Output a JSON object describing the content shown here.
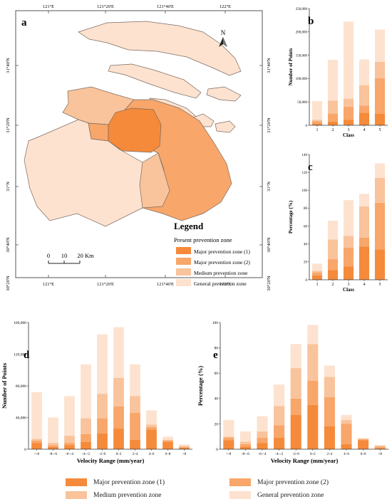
{
  "colors": {
    "major1": "#f58a3a",
    "major2": "#f8a66a",
    "medium": "#f9c39b",
    "general": "#fde2cf",
    "frame": "#555555"
  },
  "map": {
    "label": "a",
    "top_ticks": [
      "121°E",
      "121°20'E",
      "121°40'E",
      "122°E"
    ],
    "bottom_ticks": [
      "121°E",
      "121°20'E",
      "121°40'E",
      "122°E"
    ],
    "left_ticks": [
      "31°40'N",
      "31°20'N",
      "31°N",
      "30°40'N",
      "30°20'N"
    ],
    "right_ticks": [
      "31°40'N",
      "31°20'N",
      "31°N",
      "30°40'N",
      "30°20'N"
    ],
    "north": "N",
    "scale_labels": [
      "0",
      "10",
      "20 Km"
    ],
    "legend_title": "Legend",
    "legend_subtitle": "Present prevention zone",
    "legend_items": [
      {
        "label": "Major prevention zone (1)",
        "color": "#f58a3a"
      },
      {
        "label": "Major prevention zone (2)",
        "color": "#f8a66a"
      },
      {
        "label": "Medium prevention zone",
        "color": "#f9c39b"
      },
      {
        "label": "General prevention zone",
        "color": "#fde2cf"
      }
    ]
  },
  "chart_data": [
    {
      "id": "b",
      "type": "bar",
      "stacked": true,
      "categories": [
        "1",
        "2",
        "3",
        "4",
        "5"
      ],
      "series": [
        {
          "name": "Major prevention zone (1)",
          "values": [
            4000,
            8000,
            12000,
            27000,
            25000
          ]
        },
        {
          "name": "Major prevention zone (2)",
          "values": [
            5000,
            17000,
            28000,
            15000,
            76000
          ]
        },
        {
          "name": "Medium prevention zone",
          "values": [
            3000,
            28000,
            17000,
            44000,
            35000
          ]
        },
        {
          "name": "General prevention zone",
          "values": [
            40000,
            87000,
            165000,
            55000,
            69000
          ]
        }
      ],
      "xlabel": "Class",
      "ylabel": "Number of Points",
      "ylim": [
        0,
        250000
      ],
      "yticks": [
        0,
        50000,
        100000,
        150000,
        200000,
        250000
      ],
      "ytick_labels": [
        "0",
        "50,000",
        "100,000",
        "150,000",
        "200,000",
        "250,000"
      ],
      "grid": false,
      "title": ""
    },
    {
      "id": "c",
      "type": "bar",
      "stacked": true,
      "categories": [
        "1",
        "2",
        "3",
        "4",
        "5"
      ],
      "series": [
        {
          "name": "Major prevention zone (1)",
          "values": [
            5,
            11,
            15,
            37,
            34
          ]
        },
        {
          "name": "Major prevention zone (2)",
          "values": [
            3,
            12,
            21,
            10,
            52
          ]
        },
        {
          "name": "Medium prevention zone",
          "values": [
            2,
            22,
            13,
            35,
            28
          ]
        },
        {
          "name": "General prevention zone",
          "values": [
            8,
            21,
            40,
            14,
            16
          ]
        }
      ],
      "xlabel": "Class",
      "ylabel": "Percentage (%)",
      "ylim": [
        0,
        140
      ],
      "yticks": [
        0,
        20,
        40,
        60,
        80,
        100,
        120,
        140
      ],
      "ytick_labels": [
        "0",
        "20",
        "40",
        "60",
        "80",
        "100",
        "120",
        "140"
      ],
      "grid": false,
      "title": ""
    },
    {
      "id": "d",
      "type": "bar",
      "stacked": true,
      "categories": [
        "<-8",
        "-8~-6",
        "-6~-4",
        "-4~-2",
        "-2~0",
        "0~2",
        "2~4",
        "4~6",
        "6~8",
        ">8"
      ],
      "series": [
        {
          "name": "Major prevention zone (1)",
          "values": [
            8000,
            3000,
            5000,
            9000,
            20000,
            26000,
            12000,
            25000,
            9000,
            2000
          ]
        },
        {
          "name": "Major prevention zone (2)",
          "values": [
            3000,
            2000,
            3000,
            10000,
            19000,
            28000,
            34000,
            3000,
            2000,
            1000
          ]
        },
        {
          "name": "Medium prevention zone",
          "values": [
            2000,
            3000,
            9000,
            20000,
            31000,
            36000,
            21000,
            3000,
            1000,
            1000
          ]
        },
        {
          "name": "General prevention zone",
          "values": [
            59000,
            32000,
            50000,
            68000,
            75000,
            64000,
            40000,
            18000,
            4000,
            2000
          ]
        }
      ],
      "xlabel": "Velocity Range (mm/year)",
      "ylabel": "Number of Points",
      "ylim": [
        0,
        160000
      ],
      "yticks": [
        0,
        40000,
        80000,
        120000,
        160000
      ],
      "ytick_labels": [
        "0",
        "40,000",
        "80,000",
        "120,000",
        "160,000"
      ],
      "grid": false,
      "title": ""
    },
    {
      "id": "e",
      "type": "bar",
      "stacked": true,
      "categories": [
        "<-8",
        "-8~-6",
        "-6~-4",
        "-4~-2",
        "-2~0",
        "0~2",
        "2~4",
        "4~6",
        "6~8",
        ">8"
      ],
      "series": [
        {
          "name": "Major prevention zone (1)",
          "values": [
            7,
            2,
            5,
            9,
            27,
            35,
            18,
            4,
            7,
            1
          ]
        },
        {
          "name": "Major prevention zone (2)",
          "values": [
            2,
            2,
            4,
            10,
            13,
            19,
            23,
            16,
            1,
            1
          ]
        },
        {
          "name": "Medium prevention zone",
          "values": [
            1,
            2,
            5,
            15,
            24,
            29,
            16,
            3,
            0,
            1
          ]
        },
        {
          "name": "General prevention zone",
          "values": [
            13,
            8,
            12,
            17,
            19,
            15,
            9,
            4,
            1,
            0
          ]
        }
      ],
      "xlabel": "Velocity Range (mm/year)",
      "ylabel": "Percentage (%)",
      "ylim": [
        0,
        100
      ],
      "yticks": [
        0,
        20,
        40,
        60,
        80,
        100
      ],
      "ytick_labels": [
        "0",
        "20",
        "40",
        "60",
        "80",
        "100"
      ],
      "grid": false,
      "title": ""
    }
  ],
  "bottom_legend": [
    {
      "label": "Major prevention zone (1)",
      "color": "#f58a3a"
    },
    {
      "label": "Major prevention zone (2)",
      "color": "#f8a66a"
    },
    {
      "label": "Medium prevention zone",
      "color": "#f9c39b"
    },
    {
      "label": "General prevention zone",
      "color": "#fde2cf"
    }
  ]
}
